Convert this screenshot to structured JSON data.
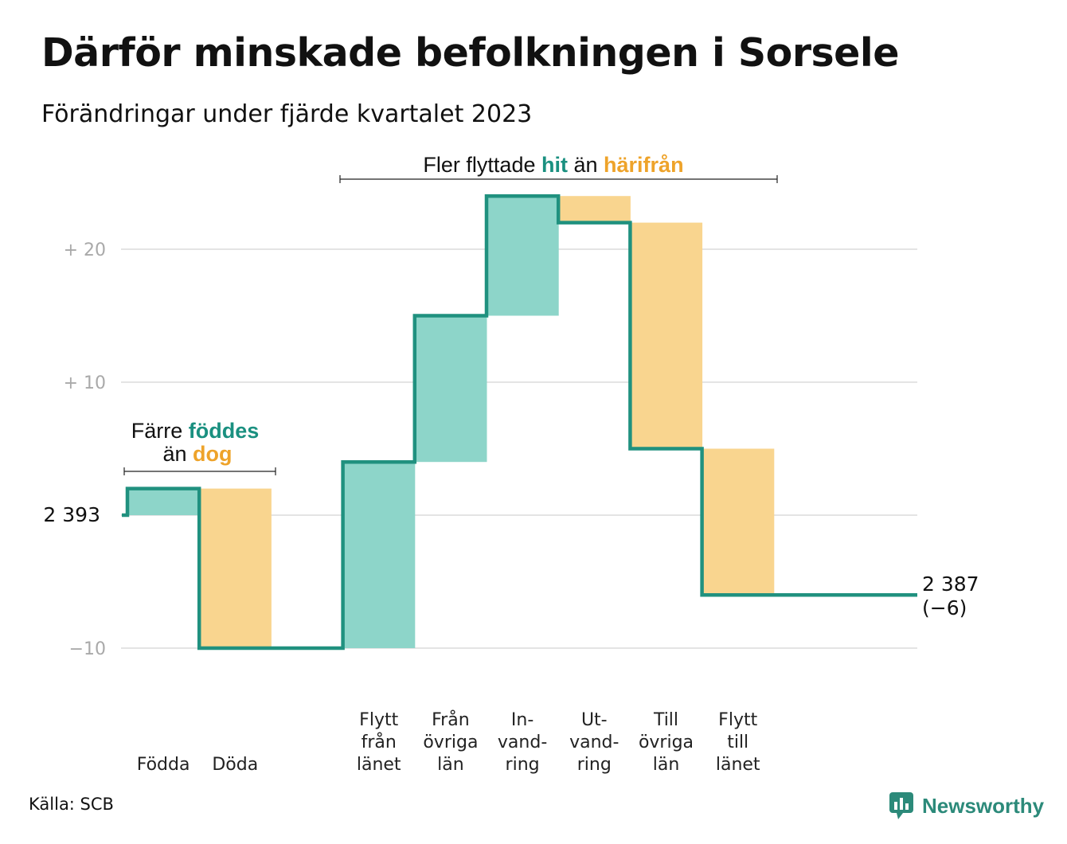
{
  "title": "Därför minskade befolkningen i Sorsele",
  "subtitle": "Förändringar under fjärde kvartalet 2023",
  "source": "Källa: SCB",
  "brand": "Newsworthy",
  "colors": {
    "increase": "#8dd5c9",
    "decrease": "#f9d58f",
    "line": "#20917f",
    "teal_text": "#1a9080",
    "orange_text": "#eea32a",
    "grid": "#e4e4e4"
  },
  "annotations": {
    "births_deaths": {
      "line1_pre": "Färre ",
      "line1_hl": "föddes",
      "line2_pre": "än ",
      "line2_hl": "dog"
    },
    "migration": {
      "pre": "Fler flyttade ",
      "hl1": "hit",
      "mid": " än ",
      "hl2": "härifrån"
    }
  },
  "chart_data": {
    "type": "waterfall",
    "title": "Därför minskade befolkningen i Sorsele",
    "subtitle": "Förändringar under fjärde kvartalet 2023",
    "start_value": 2393,
    "start_label": "2 393",
    "end_value": 2387,
    "end_label": "2 387",
    "end_change_label": "(−6)",
    "y_ticks": [
      {
        "value": 20,
        "label": "+  20"
      },
      {
        "value": 10,
        "label": "+  10"
      },
      {
        "value": -10,
        "label": "−10"
      }
    ],
    "y_range": [
      -10,
      24
    ],
    "grid": true,
    "steps": [
      {
        "category": [
          "Födda"
        ],
        "change": 2
      },
      {
        "category": [
          "Döda"
        ],
        "change": -12
      },
      {
        "category": [],
        "change": 0
      },
      {
        "category": [
          "Flytt",
          "från",
          "länet"
        ],
        "change": 14
      },
      {
        "category": [
          "Från",
          "övriga",
          "län"
        ],
        "change": 11
      },
      {
        "category": [
          "In-",
          "vand-",
          "ring"
        ],
        "change": 9
      },
      {
        "category": [
          "Ut-",
          "vand-",
          "ring"
        ],
        "change": -2
      },
      {
        "category": [
          "Till",
          "övriga",
          "län"
        ],
        "change": -17
      },
      {
        "category": [
          "Flytt",
          "till",
          "länet"
        ],
        "change": -11
      }
    ]
  }
}
